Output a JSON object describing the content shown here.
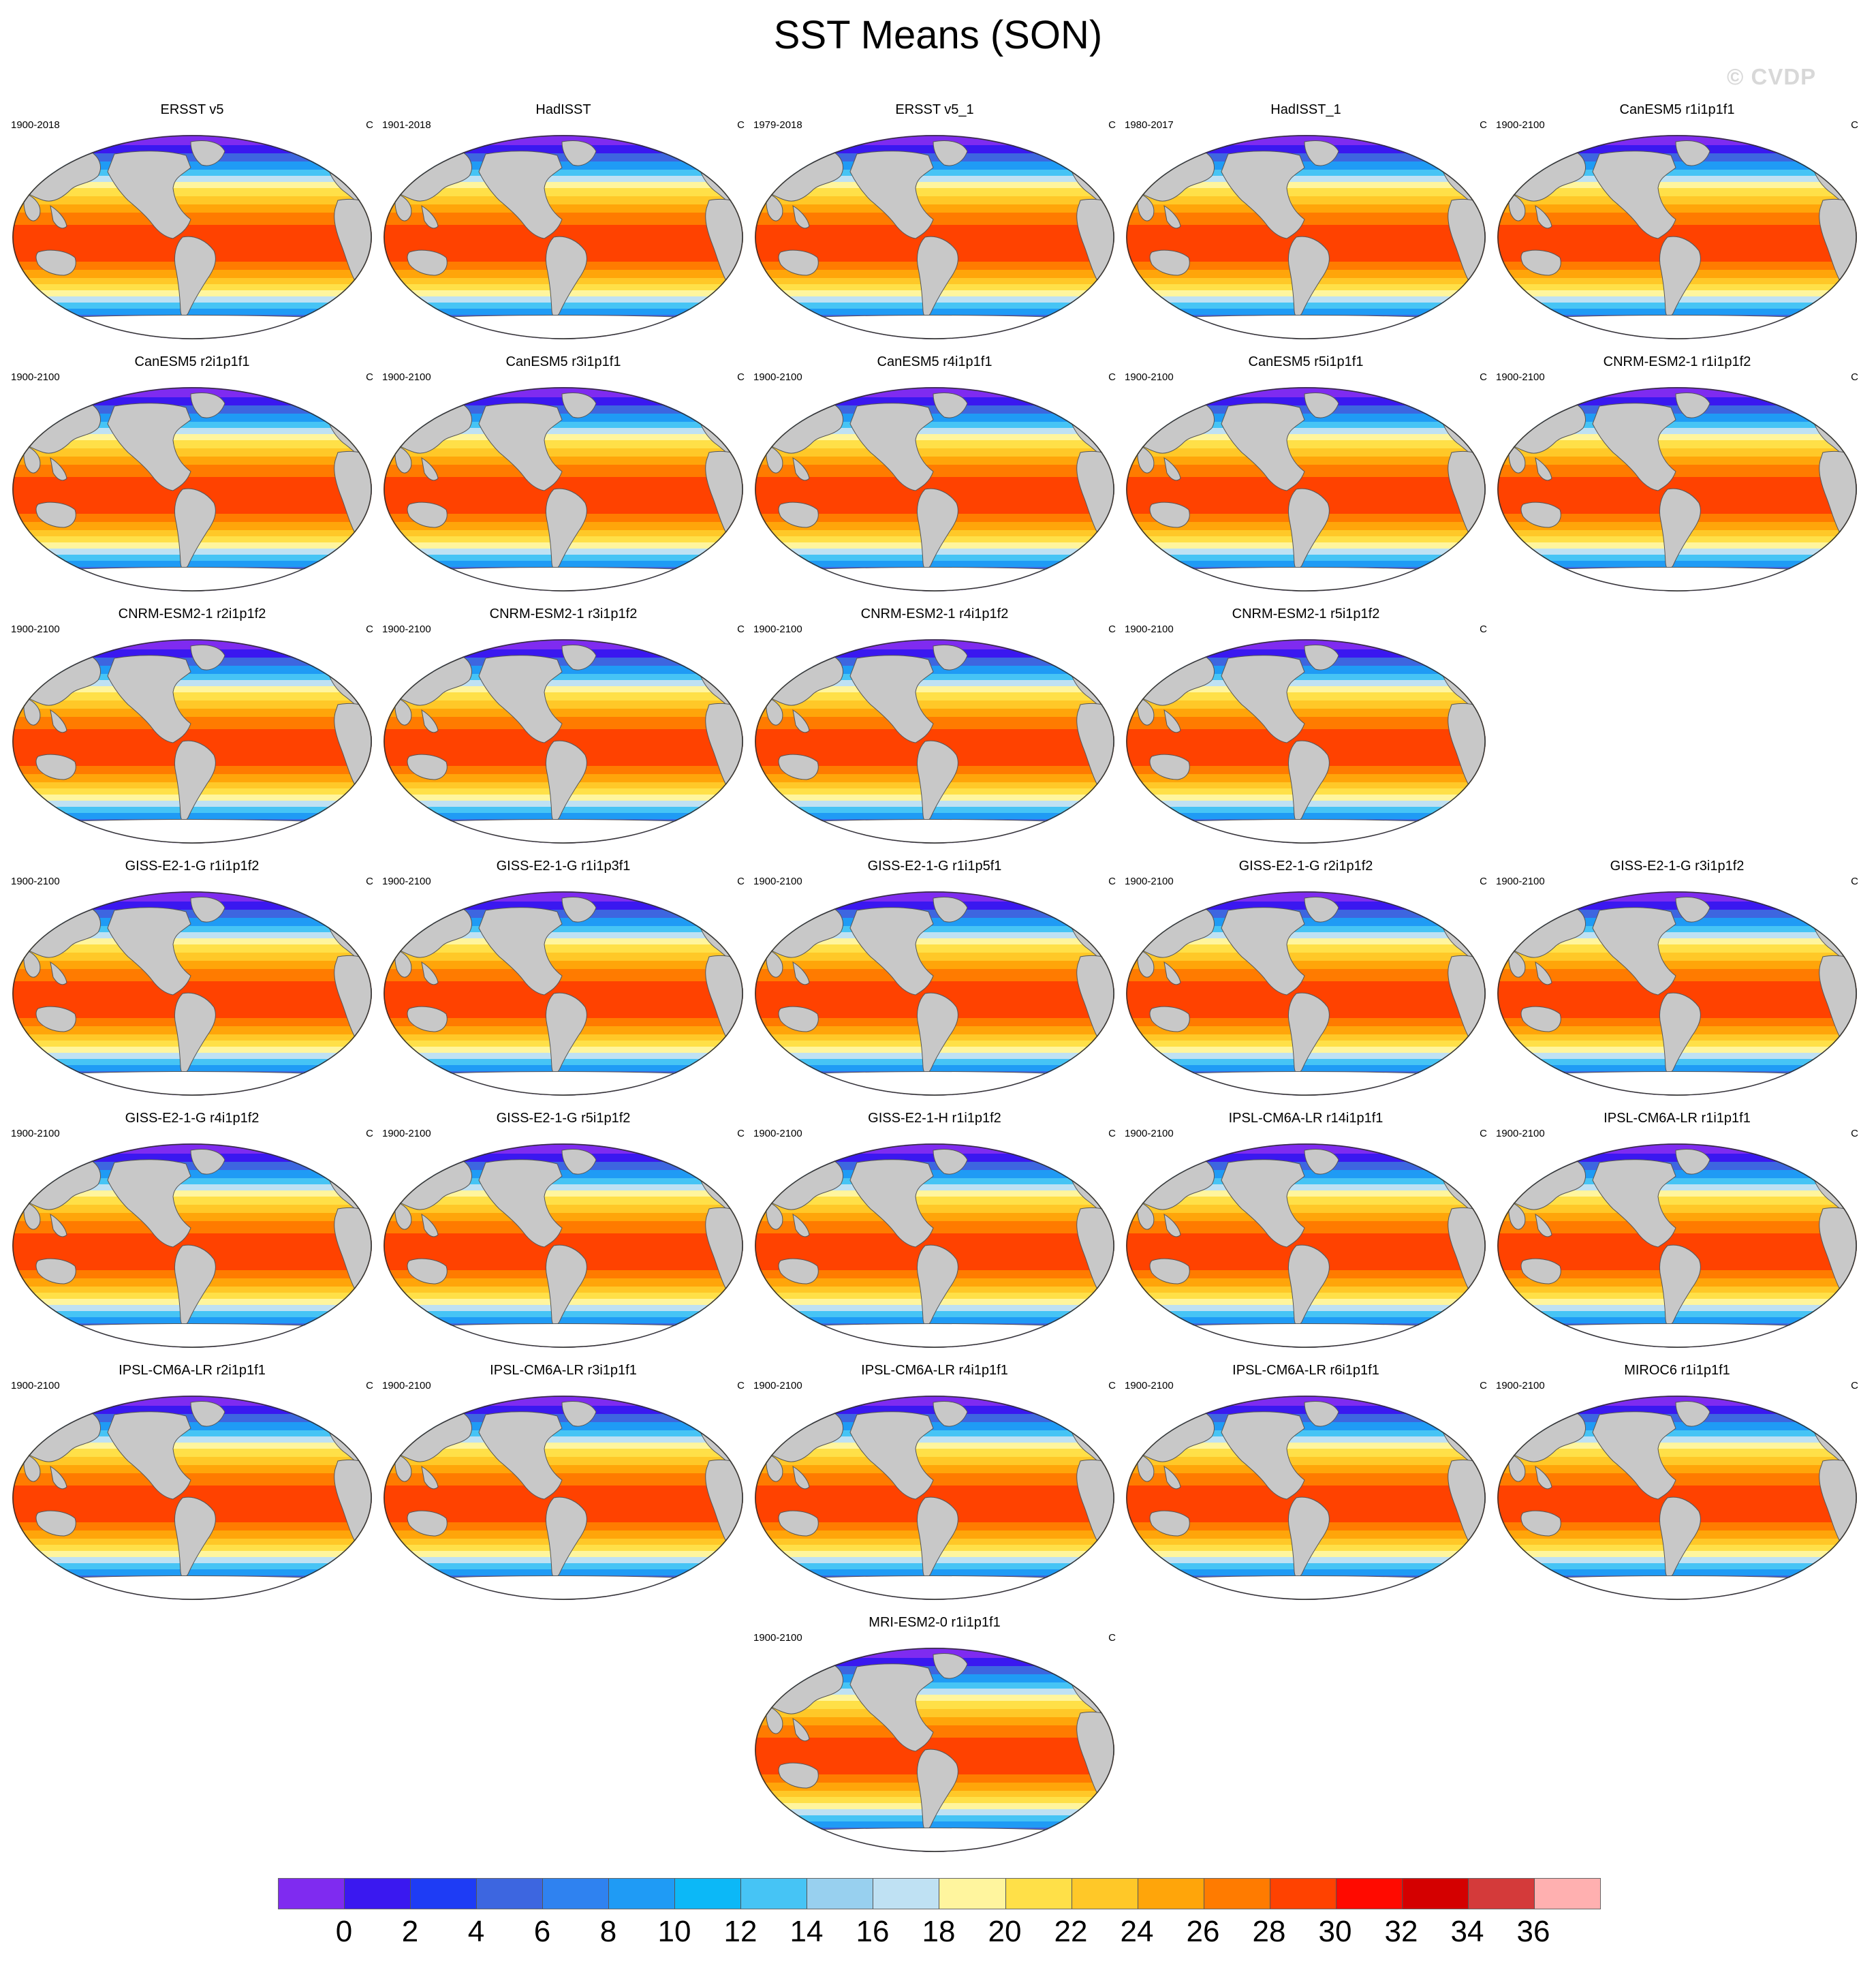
{
  "title": "SST Means (SON)",
  "watermark": "© CVDP",
  "units": "C",
  "colorbar": {
    "ticks": [
      "0",
      "2",
      "4",
      "6",
      "8",
      "10",
      "12",
      "14",
      "16",
      "18",
      "20",
      "22",
      "24",
      "26",
      "28",
      "30",
      "32",
      "34",
      "36"
    ],
    "colors": [
      "#7f2bf0",
      "#3a18f0",
      "#1e3cf5",
      "#3d66e0",
      "#2f82f0",
      "#1f9bf5",
      "#0cb8f7",
      "#46c4f5",
      "#98d0ef",
      "#bfe1f3",
      "#fff59e",
      "#ffe048",
      "#ffc828",
      "#ffa50a",
      "#ff7b00",
      "#ff4200",
      "#ff0a00",
      "#d40000",
      "#d43a3a",
      "#ffb0b0"
    ]
  },
  "panels": [
    {
      "title": "ERSST v5",
      "period": "1900-2018"
    },
    {
      "title": "HadISST",
      "period": "1901-2018"
    },
    {
      "title": "ERSST v5_1",
      "period": "1979-2018"
    },
    {
      "title": "HadISST_1",
      "period": "1980-2017"
    },
    {
      "title": "CanESM5 r1i1p1f1",
      "period": "1900-2100"
    },
    {
      "title": "CanESM5 r2i1p1f1",
      "period": "1900-2100"
    },
    {
      "title": "CanESM5 r3i1p1f1",
      "period": "1900-2100"
    },
    {
      "title": "CanESM5 r4i1p1f1",
      "period": "1900-2100"
    },
    {
      "title": "CanESM5 r5i1p1f1",
      "period": "1900-2100"
    },
    {
      "title": "CNRM-ESM2-1 r1i1p1f2",
      "period": "1900-2100"
    },
    {
      "title": "CNRM-ESM2-1 r2i1p1f2",
      "period": "1900-2100"
    },
    {
      "title": "CNRM-ESM2-1 r3i1p1f2",
      "period": "1900-2100"
    },
    {
      "title": "CNRM-ESM2-1 r4i1p1f2",
      "period": "1900-2100"
    },
    {
      "title": "CNRM-ESM2-1 r5i1p1f2",
      "period": "1900-2100"
    },
    {
      "title": "GISS-E2-1-G r1i1p1f2",
      "period": "1900-2100"
    },
    {
      "title": "GISS-E2-1-G r1i1p3f1",
      "period": "1900-2100"
    },
    {
      "title": "GISS-E2-1-G r1i1p5f1",
      "period": "1900-2100"
    },
    {
      "title": "GISS-E2-1-G r2i1p1f2",
      "period": "1900-2100"
    },
    {
      "title": "GISS-E2-1-G r3i1p1f2",
      "period": "1900-2100"
    },
    {
      "title": "GISS-E2-1-G r4i1p1f2",
      "period": "1900-2100"
    },
    {
      "title": "GISS-E2-1-G r5i1p1f2",
      "period": "1900-2100"
    },
    {
      "title": "GISS-E2-1-H r1i1p1f2",
      "period": "1900-2100"
    },
    {
      "title": "IPSL-CM6A-LR r14i1p1f1",
      "period": "1900-2100"
    },
    {
      "title": "IPSL-CM6A-LR r1i1p1f1",
      "period": "1900-2100"
    },
    {
      "title": "IPSL-CM6A-LR r2i1p1f1",
      "period": "1900-2100"
    },
    {
      "title": "IPSL-CM6A-LR r3i1p1f1",
      "period": "1900-2100"
    },
    {
      "title": "IPSL-CM6A-LR r4i1p1f1",
      "period": "1900-2100"
    },
    {
      "title": "IPSL-CM6A-LR r6i1p1f1",
      "period": "1900-2100"
    },
    {
      "title": "MIROC6 r1i1p1f1",
      "period": "1900-2100"
    },
    {
      "title": "MRI-ESM2-0 r1i1p1f1",
      "period": "1900-2100"
    }
  ]
}
